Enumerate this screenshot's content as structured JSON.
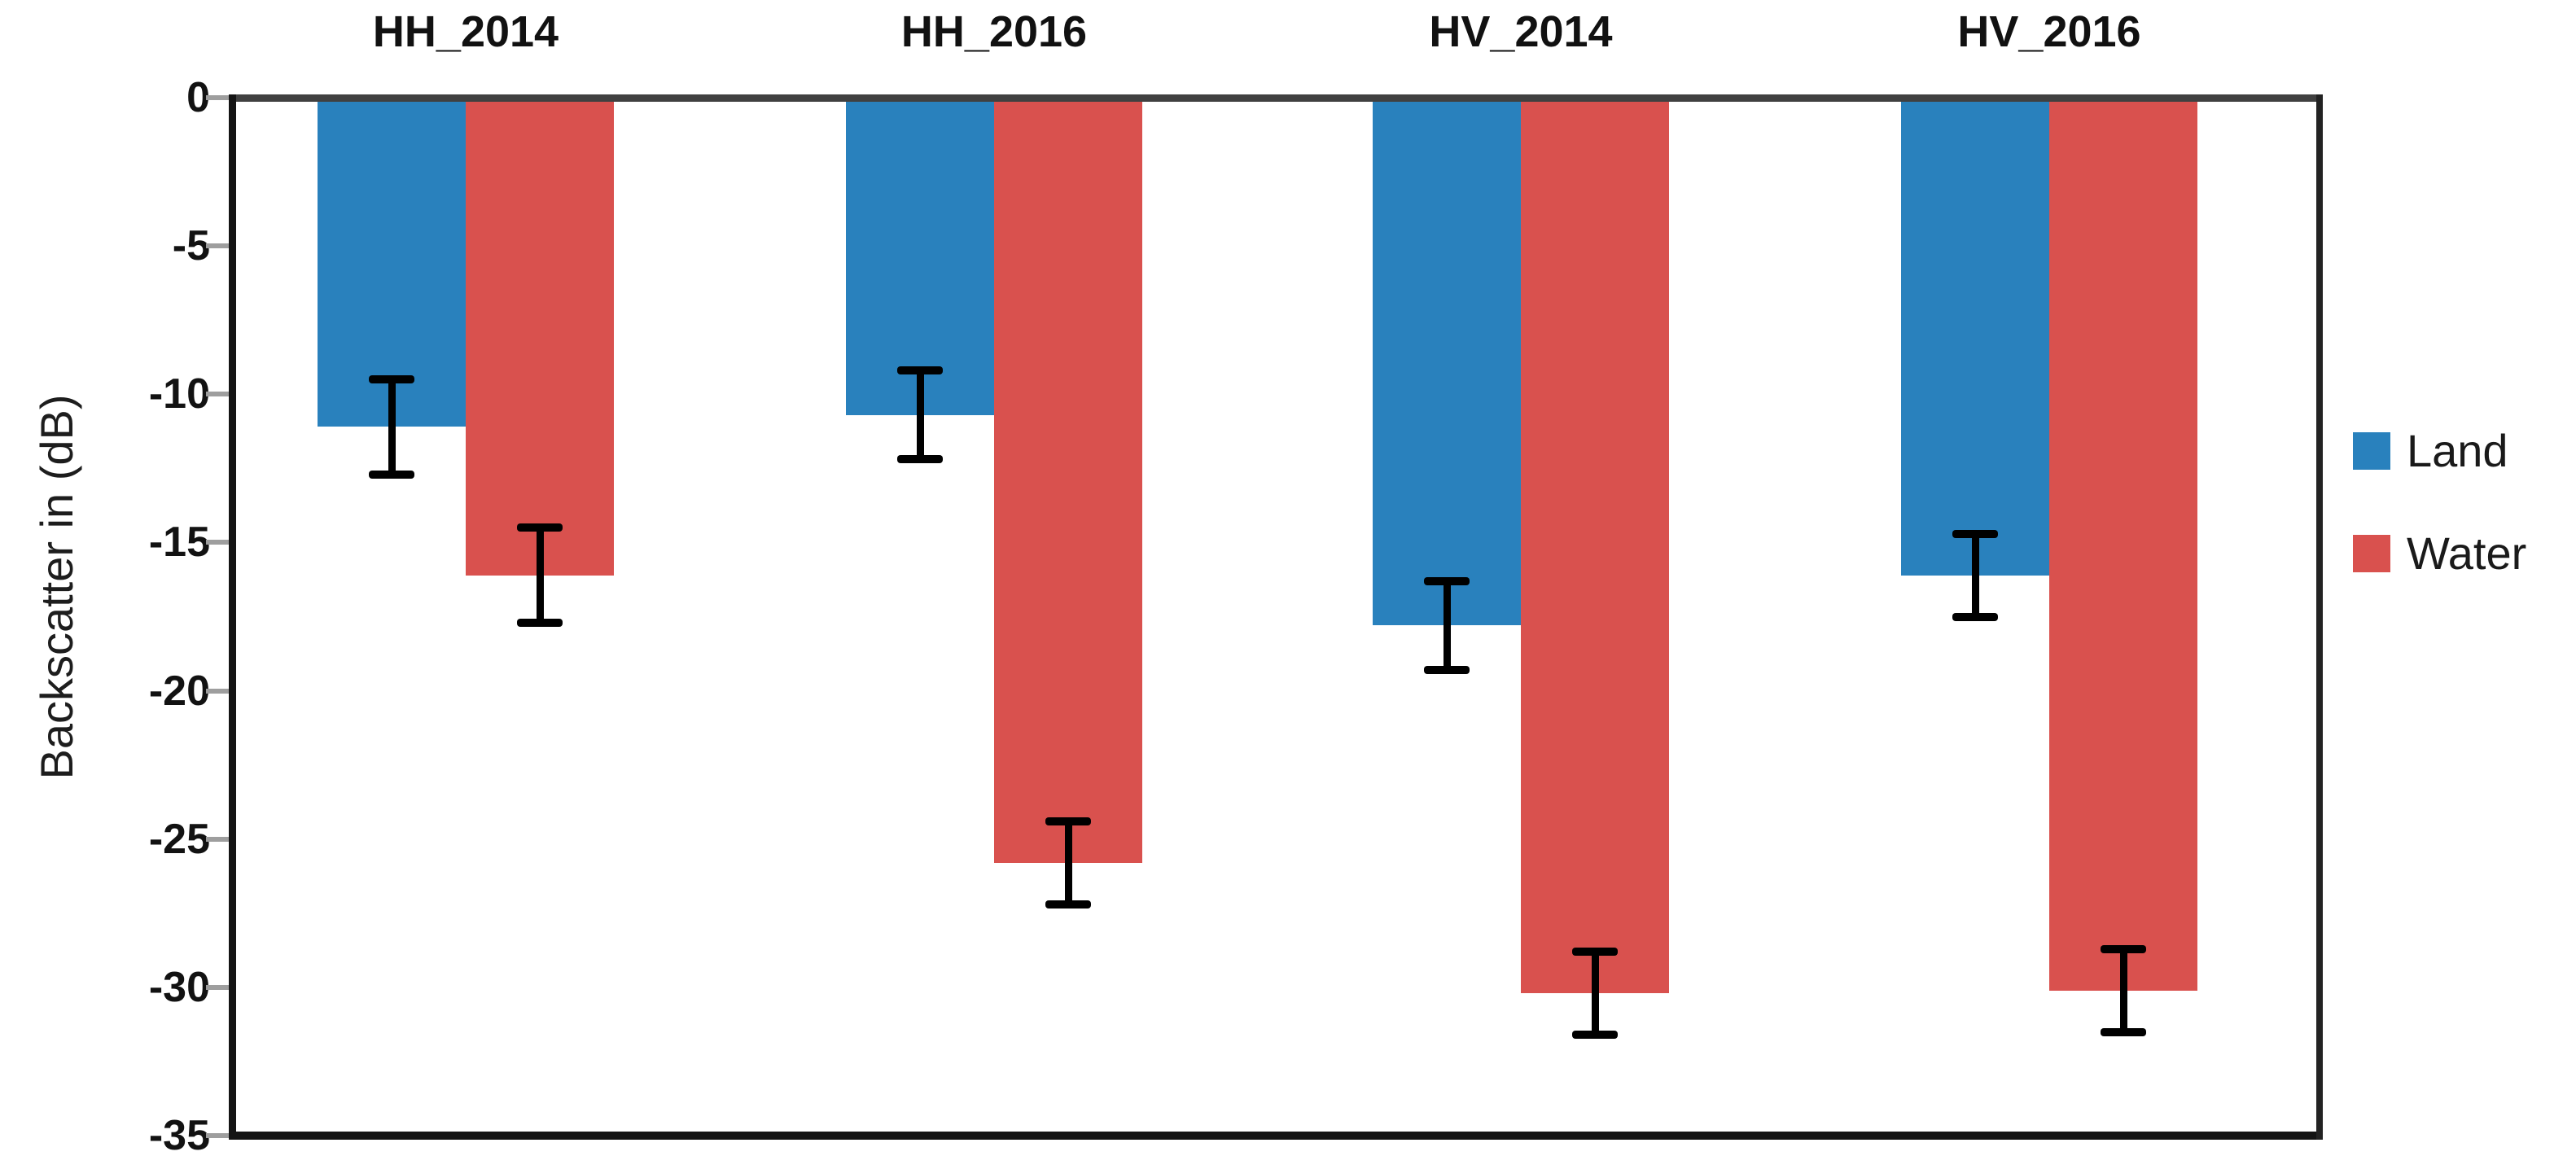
{
  "figure": {
    "y_axis_title": "Backscatter in (dB)"
  },
  "chart_data": {
    "type": "bar",
    "orientation": "vertical",
    "title": "",
    "xlabel": "",
    "ylabel": "Backscatter in (dB)",
    "categories": [
      "HH_2014",
      "HH_2016",
      "HV_2014",
      "HV_2016"
    ],
    "series": [
      {
        "name": "Land",
        "color": "#2981BD",
        "values": [
          -11.1,
          -10.7,
          -17.8,
          -16.1
        ],
        "errors": [
          1.6,
          1.5,
          1.5,
          1.4
        ]
      },
      {
        "name": "Water",
        "color": "#D9514E",
        "values": [
          -16.1,
          -25.8,
          -30.2,
          -30.1
        ],
        "errors": [
          1.6,
          1.4,
          1.4,
          1.4
        ]
      }
    ],
    "ylim": [
      -35,
      0
    ],
    "yticks": [
      0,
      -5,
      -10,
      -15,
      -20,
      -25,
      -30,
      -35
    ],
    "ytick_labels": [
      "0",
      "-5",
      "-10",
      "-15",
      "-20",
      "-25",
      "-30",
      "-35"
    ],
    "grid": false,
    "error_bars": true,
    "error_bar_color": "#000000",
    "legend_position": "right",
    "legend": [
      {
        "label": "Land",
        "color": "#2981BD"
      },
      {
        "label": "Water",
        "color": "#D9514E"
      }
    ]
  }
}
